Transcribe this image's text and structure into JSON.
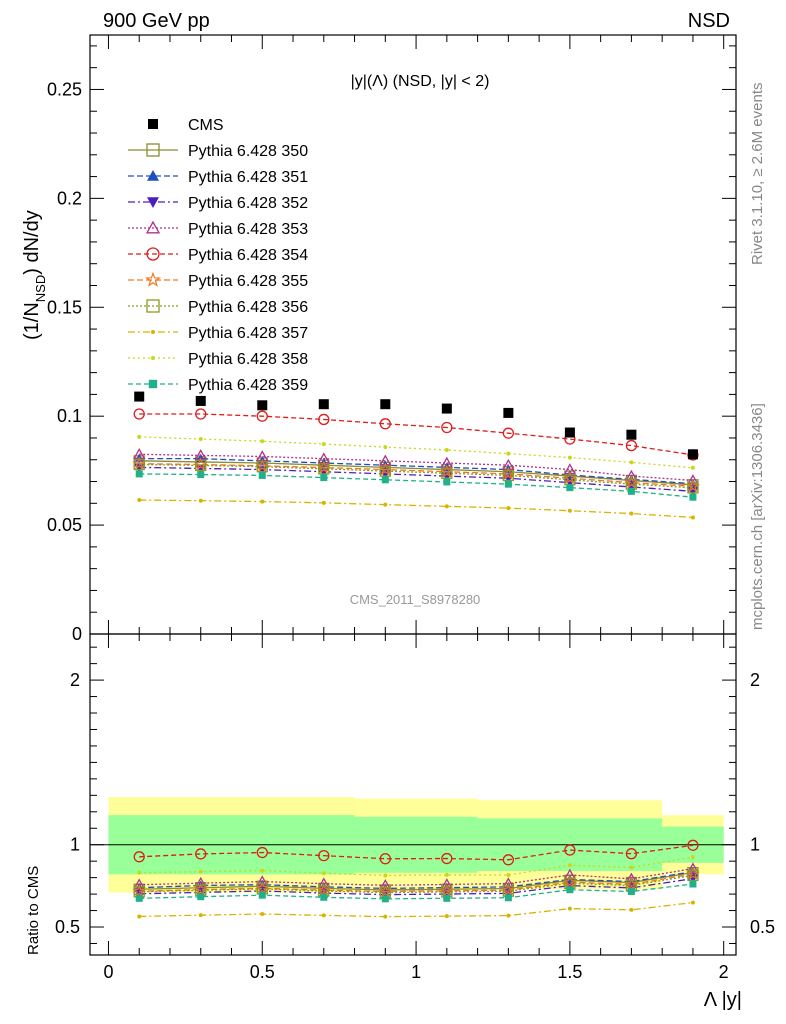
{
  "header": {
    "left": "900 GeV pp",
    "right": "NSD",
    "plot_title": "|y|(Λ) (NSD, |y| < 2)",
    "watermark": "CMS_2011_S8978280",
    "side_top": "Rivet 3.1.10, ≥ 2.6M events",
    "side_bottom": "mcplots.cern.ch [arXiv:1306.3436]"
  },
  "axes": {
    "ylabel_main_pre": "(1/N",
    "ylabel_main_sub": "NSD",
    "ylabel_main_post": ") dN/dy",
    "ylabel_ratio": "Ratio to CMS",
    "xlabel": "Λ |y|"
  },
  "chart_data": {
    "type": "scatter",
    "x": [
      0.1,
      0.3,
      0.5,
      0.7,
      0.9,
      1.1,
      1.3,
      1.5,
      1.7,
      1.9
    ],
    "xlim": [
      -0.06,
      2.04
    ],
    "ylim_main": [
      0,
      0.275
    ],
    "ylim_ratio": [
      0.33,
      2.28
    ],
    "xticks": [
      0,
      0.5,
      1,
      1.5,
      2
    ],
    "xtick_labels": [
      "0",
      "0.5",
      "1",
      "1.5",
      "2"
    ],
    "yticks_main": [
      0,
      0.05,
      0.1,
      0.15,
      0.2,
      0.25
    ],
    "ytick_labels_main": [
      "0",
      "0.05",
      "0.1",
      "0.15",
      "0.2",
      "0.25"
    ],
    "yticks_ratio": [
      0.5,
      1,
      2
    ],
    "ytick_labels_ratio": [
      "0.5",
      "1",
      "2"
    ],
    "data": {
      "name": "CMS",
      "color": "#000000",
      "values": [
        0.109,
        0.107,
        0.105,
        0.1055,
        0.1055,
        0.1035,
        0.1015,
        0.0925,
        0.0915,
        0.0825
      ]
    },
    "band_inner": [
      0.82,
      0.82,
      0.82,
      0.82,
      0.83,
      0.83,
      0.84,
      0.84,
      0.84,
      0.89
    ],
    "band_outer": [
      0.71,
      0.71,
      0.71,
      0.71,
      0.72,
      0.72,
      0.73,
      0.73,
      0.73,
      0.82
    ],
    "series": [
      {
        "name": "Pythia 6.428 350",
        "color": "#8c8c30",
        "dash": "",
        "marker": "square-open",
        "values": [
          0.0795,
          0.079,
          0.0785,
          0.0775,
          0.0765,
          0.0755,
          0.0745,
          0.0725,
          0.0705,
          0.0685
        ]
      },
      {
        "name": "Pythia 6.428 351",
        "color": "#1f4fbf",
        "dash": "6,3",
        "marker": "triangle-filled",
        "values": [
          0.0805,
          0.0805,
          0.0795,
          0.0785,
          0.0775,
          0.0765,
          0.0755,
          0.073,
          0.071,
          0.069
        ]
      },
      {
        "name": "Pythia 6.428 352",
        "color": "#4b1fbf",
        "dash": "7,3,2,3",
        "marker": "triangle-down-filled",
        "values": [
          0.0765,
          0.076,
          0.0755,
          0.0745,
          0.0735,
          0.0725,
          0.0715,
          0.0695,
          0.0675,
          0.0655
        ]
      },
      {
        "name": "Pythia 6.428 353",
        "color": "#b0308c",
        "dash": "2,2",
        "marker": "triangle-open",
        "values": [
          0.0825,
          0.082,
          0.0815,
          0.0805,
          0.0795,
          0.0785,
          0.0775,
          0.0755,
          0.0725,
          0.0705
        ]
      },
      {
        "name": "Pythia 6.428 354",
        "color": "#dd1c1c",
        "dash": "5,3",
        "marker": "circle-open",
        "values": [
          0.101,
          0.101,
          0.1,
          0.0985,
          0.0965,
          0.0948,
          0.0922,
          0.0895,
          0.0865,
          0.0822
        ]
      },
      {
        "name": "Pythia 6.428 355",
        "color": "#ee7722",
        "dash": "6,3",
        "marker": "star-open",
        "values": [
          0.0782,
          0.0778,
          0.0772,
          0.0764,
          0.0755,
          0.0745,
          0.0735,
          0.0715,
          0.0695,
          0.0678
        ]
      },
      {
        "name": "Pythia 6.428 356",
        "color": "#8c9a1e",
        "dash": "2,2",
        "marker": "square-open",
        "values": [
          0.0778,
          0.0774,
          0.0768,
          0.0758,
          0.0748,
          0.0738,
          0.0728,
          0.0708,
          0.0688,
          0.0671
        ]
      },
      {
        "name": "Pythia 6.428 357",
        "color": "#d8b400",
        "dash": "7,3,2,3",
        "marker": "dot",
        "values": [
          0.0615,
          0.0612,
          0.0608,
          0.0602,
          0.0594,
          0.0586,
          0.0578,
          0.0566,
          0.0553,
          0.0535
        ]
      },
      {
        "name": "Pythia 6.428 358",
        "color": "#c8d81c",
        "dash": "2,3",
        "marker": "dot",
        "values": [
          0.0905,
          0.0895,
          0.0885,
          0.0872,
          0.0858,
          0.0845,
          0.0828,
          0.081,
          0.0788,
          0.0763
        ]
      },
      {
        "name": "Pythia 6.428 359",
        "color": "#20b08c",
        "dash": "5,3",
        "marker": "square-filled",
        "values": [
          0.0735,
          0.0732,
          0.0728,
          0.0718,
          0.0708,
          0.0698,
          0.0688,
          0.0672,
          0.0655,
          0.0628
        ]
      }
    ]
  }
}
